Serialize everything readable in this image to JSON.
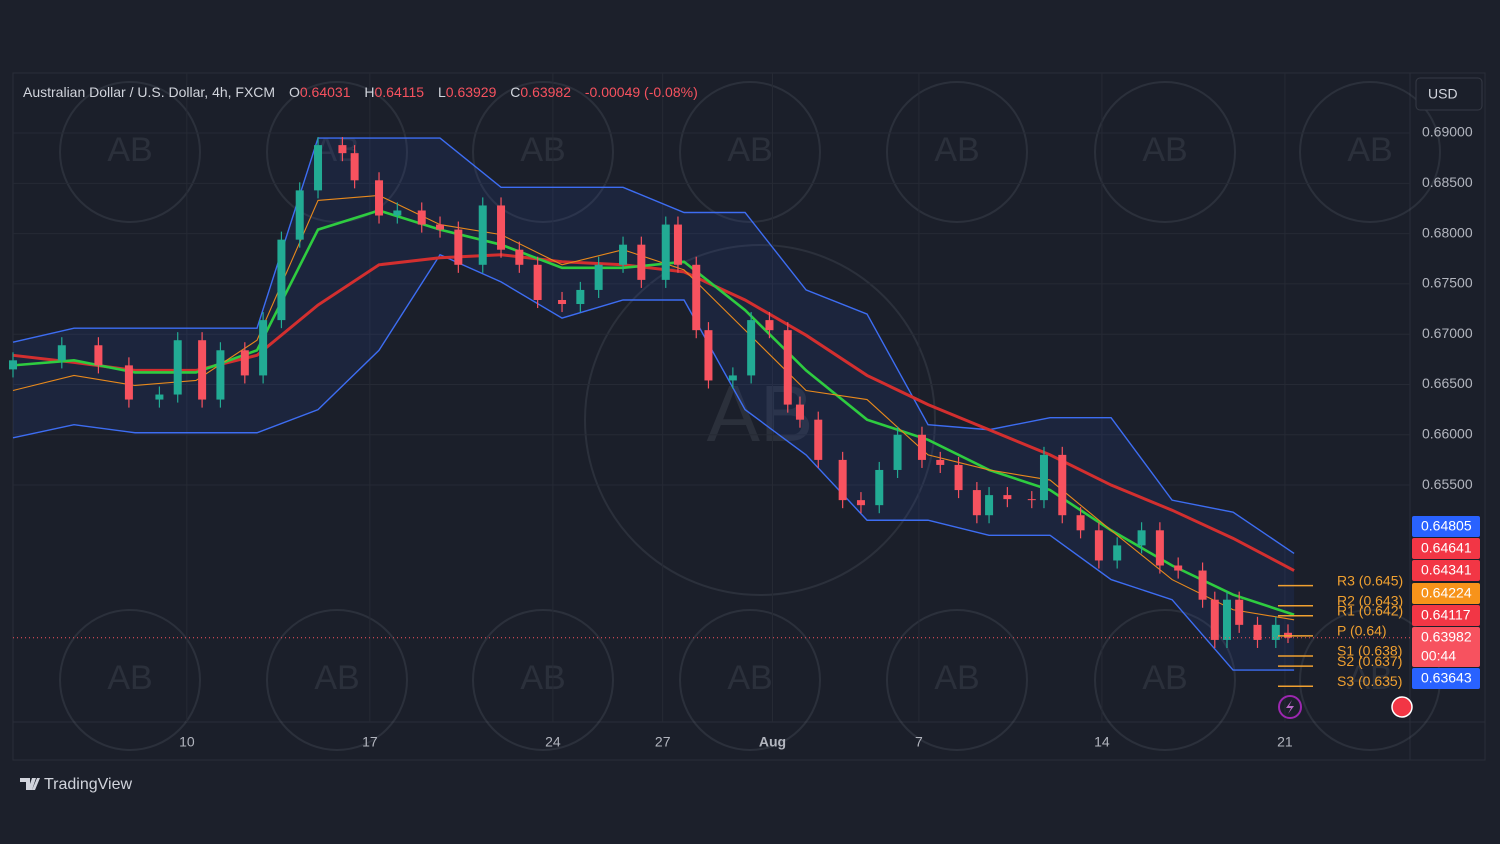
{
  "chart_data": {
    "type": "candlestick",
    "title": "Australian Dollar / U.S. Dollar, 4h, FXCM",
    "ohlc_labels": [
      "O",
      "H",
      "L",
      "C"
    ],
    "change": "-0.00049 (-0.08%)",
    "currency": "USD",
    "brand": "TradingView",
    "watermark": "AB",
    "grid": true,
    "xlim": [
      0,
      229
    ],
    "xticks": [
      {
        "value": 28.5,
        "label": "10"
      },
      {
        "value": 58.5,
        "label": "17"
      },
      {
        "value": 88.5,
        "label": "24"
      },
      {
        "value": 106.5,
        "label": "27"
      },
      {
        "value": 124.5,
        "label": "Aug"
      },
      {
        "value": 148.5,
        "label": "7"
      },
      {
        "value": 178.5,
        "label": "14"
      },
      {
        "value": 208.5,
        "label": "21"
      }
    ],
    "ylim": [
      0.63144,
      0.69597
    ],
    "yticks": [
      {
        "value": 0.69,
        "label": "0.69000"
      },
      {
        "value": 0.685,
        "label": "0.68500"
      },
      {
        "value": 0.68,
        "label": "0.68000"
      },
      {
        "value": 0.675,
        "label": "0.67500"
      },
      {
        "value": 0.67,
        "label": "0.67000"
      },
      {
        "value": 0.665,
        "label": "0.66500"
      },
      {
        "value": 0.66,
        "label": "0.66000"
      },
      {
        "value": 0.655,
        "label": "0.65500"
      }
    ],
    "candles": {
      "up_color": "#22ab94",
      "down_color": "#f7525f",
      "x": [
        0,
        8,
        14,
        19,
        24,
        27,
        31,
        34,
        38,
        41,
        44,
        47,
        50,
        54,
        56,
        60,
        63,
        67,
        70,
        73,
        77,
        80,
        83,
        86,
        90,
        93,
        96,
        100,
        103,
        107,
        109,
        112,
        114,
        118,
        121,
        124,
        127,
        129,
        132,
        136,
        139,
        142,
        145,
        149,
        152,
        155,
        158,
        160,
        163,
        167,
        169,
        172,
        175,
        178,
        181,
        185,
        188,
        191,
        195,
        197,
        199,
        201,
        204,
        207,
        209
      ],
      "open": [
        0.6665,
        0.6674,
        0.6689,
        0.6669,
        0.6635,
        0.664,
        0.6694,
        0.6635,
        0.6684,
        0.6659,
        0.6714,
        0.6794,
        0.6843,
        0.6888,
        0.688,
        0.6853,
        0.6818,
        0.6823,
        0.6809,
        0.6804,
        0.6769,
        0.6828,
        0.6784,
        0.6769,
        0.6734,
        0.673,
        0.6744,
        0.6769,
        0.6789,
        0.6754,
        0.6809,
        0.6769,
        0.6704,
        0.6654,
        0.6659,
        0.6714,
        0.6704,
        0.663,
        0.6615,
        0.6575,
        0.6535,
        0.653,
        0.6565,
        0.66,
        0.6575,
        0.657,
        0.6545,
        0.652,
        0.654,
        0.6536,
        0.6535,
        0.658,
        0.652,
        0.6505,
        0.6475,
        0.649,
        0.6505,
        0.647,
        0.6465,
        0.6436,
        0.6396,
        0.6436,
        0.6411,
        0.6396,
        0.64031
      ],
      "high": [
        0.6682,
        0.6697,
        0.6697,
        0.6677,
        0.6648,
        0.6702,
        0.6702,
        0.6692,
        0.6692,
        0.6722,
        0.6802,
        0.6851,
        0.6896,
        0.6896,
        0.6888,
        0.6861,
        0.6831,
        0.6831,
        0.6817,
        0.6812,
        0.6836,
        0.6836,
        0.6792,
        0.6777,
        0.6742,
        0.6752,
        0.6777,
        0.6797,
        0.6797,
        0.6817,
        0.6817,
        0.6777,
        0.6712,
        0.6667,
        0.6722,
        0.6722,
        0.6712,
        0.6638,
        0.6623,
        0.6583,
        0.6543,
        0.6573,
        0.6608,
        0.6608,
        0.6583,
        0.6578,
        0.6553,
        0.6548,
        0.6548,
        0.6544,
        0.6588,
        0.6588,
        0.6528,
        0.6513,
        0.6498,
        0.6513,
        0.6513,
        0.6478,
        0.6473,
        0.6444,
        0.6444,
        0.6444,
        0.6419,
        0.6419,
        0.64115
      ],
      "low": [
        0.6657,
        0.6666,
        0.6661,
        0.6627,
        0.6627,
        0.6632,
        0.6627,
        0.6627,
        0.6651,
        0.6651,
        0.6706,
        0.6786,
        0.6835,
        0.6872,
        0.6845,
        0.681,
        0.681,
        0.6801,
        0.6796,
        0.6761,
        0.6761,
        0.6776,
        0.6761,
        0.6726,
        0.6722,
        0.6722,
        0.6736,
        0.6761,
        0.6746,
        0.6746,
        0.6761,
        0.6696,
        0.6646,
        0.6646,
        0.6651,
        0.6696,
        0.6622,
        0.6607,
        0.6567,
        0.6527,
        0.6522,
        0.6522,
        0.6557,
        0.6567,
        0.6562,
        0.6537,
        0.6512,
        0.6512,
        0.6528,
        0.6527,
        0.6527,
        0.6512,
        0.6497,
        0.6467,
        0.6467,
        0.6482,
        0.6462,
        0.6457,
        0.6428,
        0.6388,
        0.6388,
        0.6403,
        0.6388,
        0.6388,
        0.63929
      ],
      "close": [
        0.6674,
        0.6689,
        0.6669,
        0.6635,
        0.664,
        0.6694,
        0.6635,
        0.6684,
        0.6659,
        0.6714,
        0.6794,
        0.6843,
        0.6888,
        0.688,
        0.6853,
        0.6818,
        0.6823,
        0.6809,
        0.6804,
        0.6769,
        0.6828,
        0.6784,
        0.6769,
        0.6734,
        0.673,
        0.6744,
        0.6769,
        0.6789,
        0.6754,
        0.6809,
        0.6769,
        0.6704,
        0.6654,
        0.6659,
        0.6714,
        0.6704,
        0.663,
        0.6615,
        0.6575,
        0.6535,
        0.653,
        0.6565,
        0.66,
        0.6575,
        0.657,
        0.6545,
        0.652,
        0.654,
        0.6536,
        0.6535,
        0.658,
        0.652,
        0.6505,
        0.6475,
        0.649,
        0.6505,
        0.647,
        0.6465,
        0.6436,
        0.6396,
        0.6436,
        0.6411,
        0.6396,
        0.6411,
        0.63982
      ]
    },
    "channel_fill": "rgba(41,98,255,0.09)",
    "lines": {
      "x": [
        0,
        10,
        20,
        30,
        40,
        50,
        60,
        70,
        80,
        90,
        100,
        110,
        120,
        130,
        140,
        150,
        160,
        170,
        180,
        190,
        200,
        210
      ],
      "series": [
        {
          "color": "#3d6df2",
          "values": [
            0.6692,
            0.6706,
            0.6706,
            0.6706,
            0.6706,
            0.6895,
            0.6895,
            0.6895,
            0.6846,
            0.6846,
            0.6846,
            0.6821,
            0.6821,
            0.6744,
            0.672,
            0.661,
            0.6605,
            0.6617,
            0.6617,
            0.6535,
            0.6523,
            0.6482
          ]
        },
        {
          "color": "#3d6df2",
          "values": [
            0.6597,
            0.661,
            0.6602,
            0.6602,
            0.6602,
            0.6625,
            0.6684,
            0.6779,
            0.6752,
            0.6716,
            0.6734,
            0.6734,
            0.6625,
            0.658,
            0.6515,
            0.6515,
            0.65,
            0.65,
            0.6456,
            0.6436,
            0.6366,
            0.6366
          ]
        },
        {
          "color": "#d32f2f",
          "values": [
            0.6679,
            0.6672,
            0.6664,
            0.6664,
            0.6679,
            0.6729,
            0.6769,
            0.6776,
            0.6779,
            0.6772,
            0.6769,
            0.6762,
            0.6734,
            0.6699,
            0.6659,
            0.663,
            0.6605,
            0.658,
            0.655,
            0.6525,
            0.6497,
            0.6465
          ]
        },
        {
          "color": "#2ecc40",
          "values": [
            0.6669,
            0.6674,
            0.6662,
            0.6662,
            0.6684,
            0.6804,
            0.6823,
            0.6804,
            0.6789,
            0.6766,
            0.6766,
            0.6772,
            0.6724,
            0.6664,
            0.6615,
            0.6595,
            0.6565,
            0.6545,
            0.6505,
            0.647,
            0.6441,
            0.6421
          ]
        },
        {
          "color": "#e8891c",
          "values": [
            0.6644,
            0.6659,
            0.6649,
            0.6654,
            0.6694,
            0.6833,
            0.6838,
            0.6809,
            0.6799,
            0.6769,
            0.6784,
            0.6764,
            0.6704,
            0.6644,
            0.6635,
            0.658,
            0.6565,
            0.6555,
            0.6505,
            0.6456,
            0.6426,
            0.6416
          ]
        }
      ]
    },
    "pivot_color": "#f0a030",
    "pivots": [
      {
        "label": "R3 (0.645)",
        "value": 0.645
      },
      {
        "label": "R2 (0.643)",
        "value": 0.643
      },
      {
        "label": "R1 (0.642)",
        "value": 0.642
      },
      {
        "label": "P (0.64)",
        "value": 0.64
      },
      {
        "label": "S1 (0.638)",
        "value": 0.638
      },
      {
        "label": "S2 (0.637)",
        "value": 0.637
      },
      {
        "label": "S3 (0.635)",
        "value": 0.635
      }
    ],
    "price_labels": [
      {
        "value": 0.64805,
        "color": "#2962ff"
      },
      {
        "value": 0.64641,
        "color": "#f23645"
      },
      {
        "value": 0.64341,
        "color": "#f23645"
      },
      {
        "value": 0.64224,
        "color": "#f7931a"
      },
      {
        "value": 0.64117,
        "color": "#f23645"
      },
      {
        "value": 0.63643,
        "color": "#2962ff"
      }
    ],
    "last_price_color": "#f7525f",
    "countdown": "00:44"
  }
}
